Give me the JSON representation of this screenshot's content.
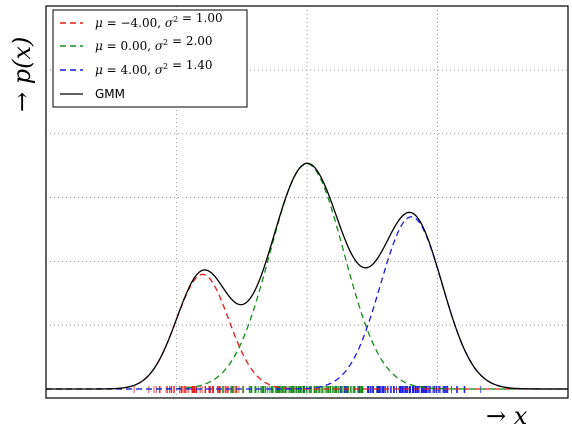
{
  "chart_data": {
    "type": "line",
    "xlabel": "x",
    "ylabel": "p(x)",
    "xlim": [
      -10,
      10
    ],
    "ylim": [
      0,
      0.24
    ],
    "grid": true,
    "x_gridlines": [
      -5,
      0,
      5
    ],
    "y_gridlines": [
      0.04,
      0.08,
      0.12,
      0.16,
      0.2
    ],
    "legend_position": "top-left",
    "series": [
      {
        "name": "μ = −4.00, σ² = 1.00",
        "mean": -4.0,
        "variance": 1.0,
        "weight": 0.18,
        "color": "#e8191a",
        "style": "dashed"
      },
      {
        "name": "μ = 0.00, σ² = 2.00",
        "mean": 0.0,
        "variance": 2.0,
        "weight": 0.5,
        "color": "#188a1b",
        "style": "dashed"
      },
      {
        "name": "μ = 4.00, σ² = 1.40",
        "mean": 4.0,
        "variance": 1.4,
        "weight": 0.32,
        "color": "#1a1ae8",
        "style": "dashed"
      },
      {
        "name": "GMM",
        "color": "#000000",
        "style": "solid"
      }
    ],
    "legend": {
      "entries": [
        {
          "mu": "−4.00",
          "sigma2": "1.00",
          "color": "#e8191a"
        },
        {
          "mu": "0.00",
          "sigma2": "2.00",
          "color": "#188a1b"
        },
        {
          "mu": "4.00",
          "sigma2": "1.40",
          "color": "#1a1ae8"
        }
      ],
      "gmm_label": "GMM"
    }
  }
}
